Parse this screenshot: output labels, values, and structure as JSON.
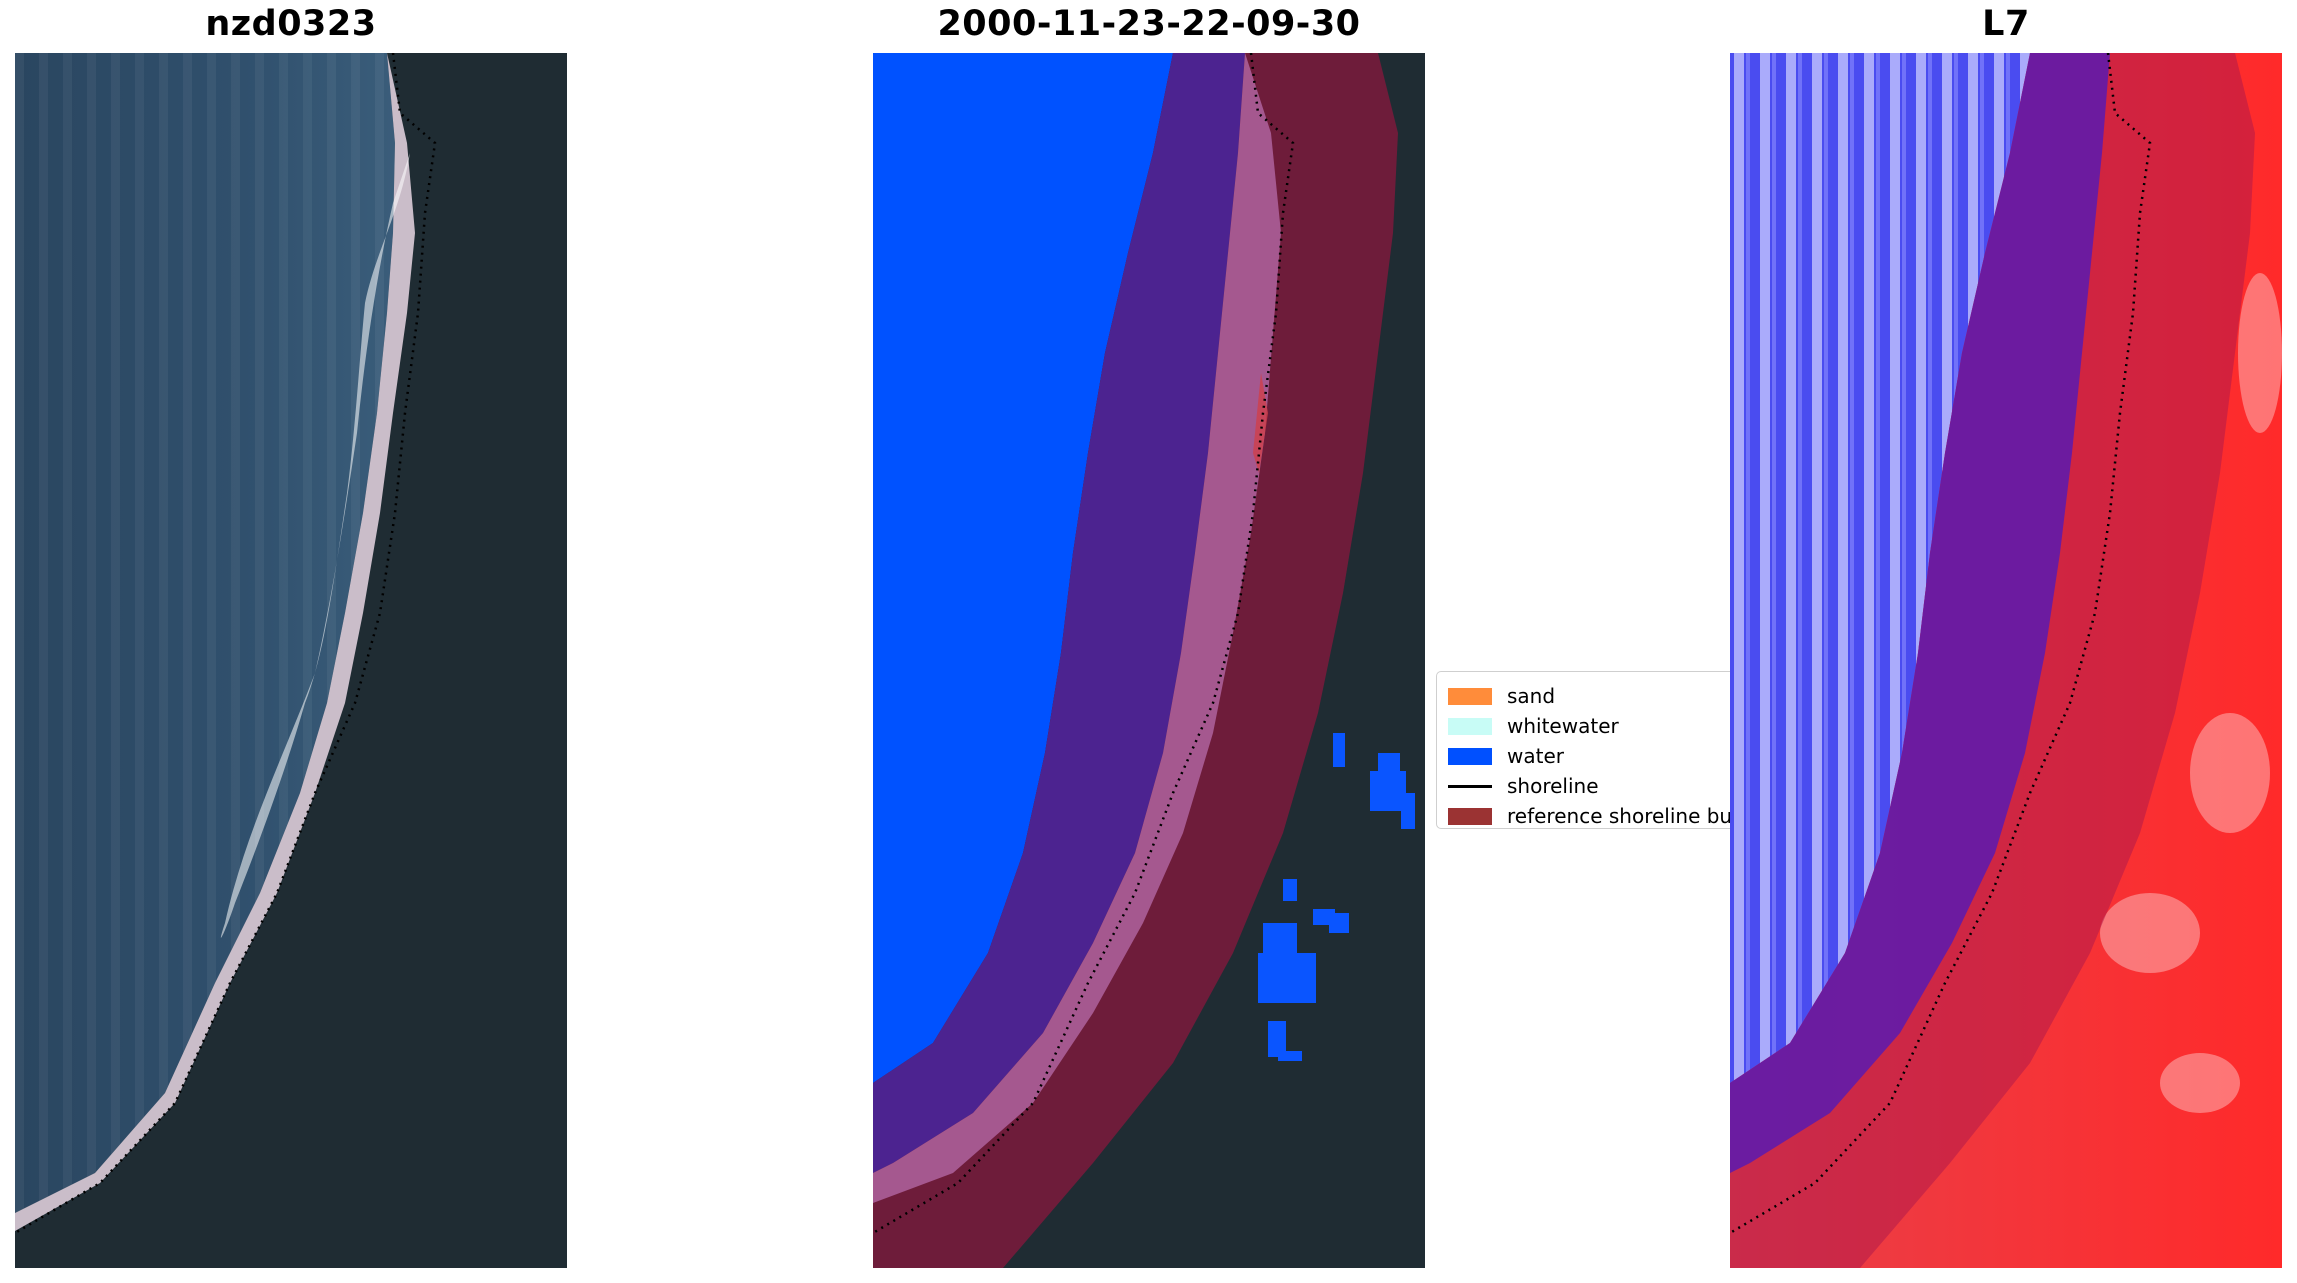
{
  "panels": [
    {
      "id": "rgb",
      "title": "nzd0323"
    },
    {
      "id": "classified",
      "title": "2000-11-23-22-09-30"
    },
    {
      "id": "mndwi",
      "title": "L7"
    }
  ],
  "legend": {
    "items": [
      {
        "label": "sand",
        "color": "#ff8c3a",
        "kind": "patch"
      },
      {
        "label": "whitewater",
        "color": "#c8fcf6",
        "kind": "patch"
      },
      {
        "label": "water",
        "color": "#0050ff",
        "kind": "patch"
      },
      {
        "label": "shoreline",
        "color": "#000000",
        "kind": "line"
      },
      {
        "label": "reference shoreline buffer",
        "color": "#9b3333",
        "kind": "patch"
      }
    ]
  },
  "colors": {
    "land": "#1e2c33",
    "sea": "#2e4a66",
    "buffer": "#7d1a3c",
    "water_index_high": "#3b3bff",
    "water_index_low": "#ff2020"
  }
}
